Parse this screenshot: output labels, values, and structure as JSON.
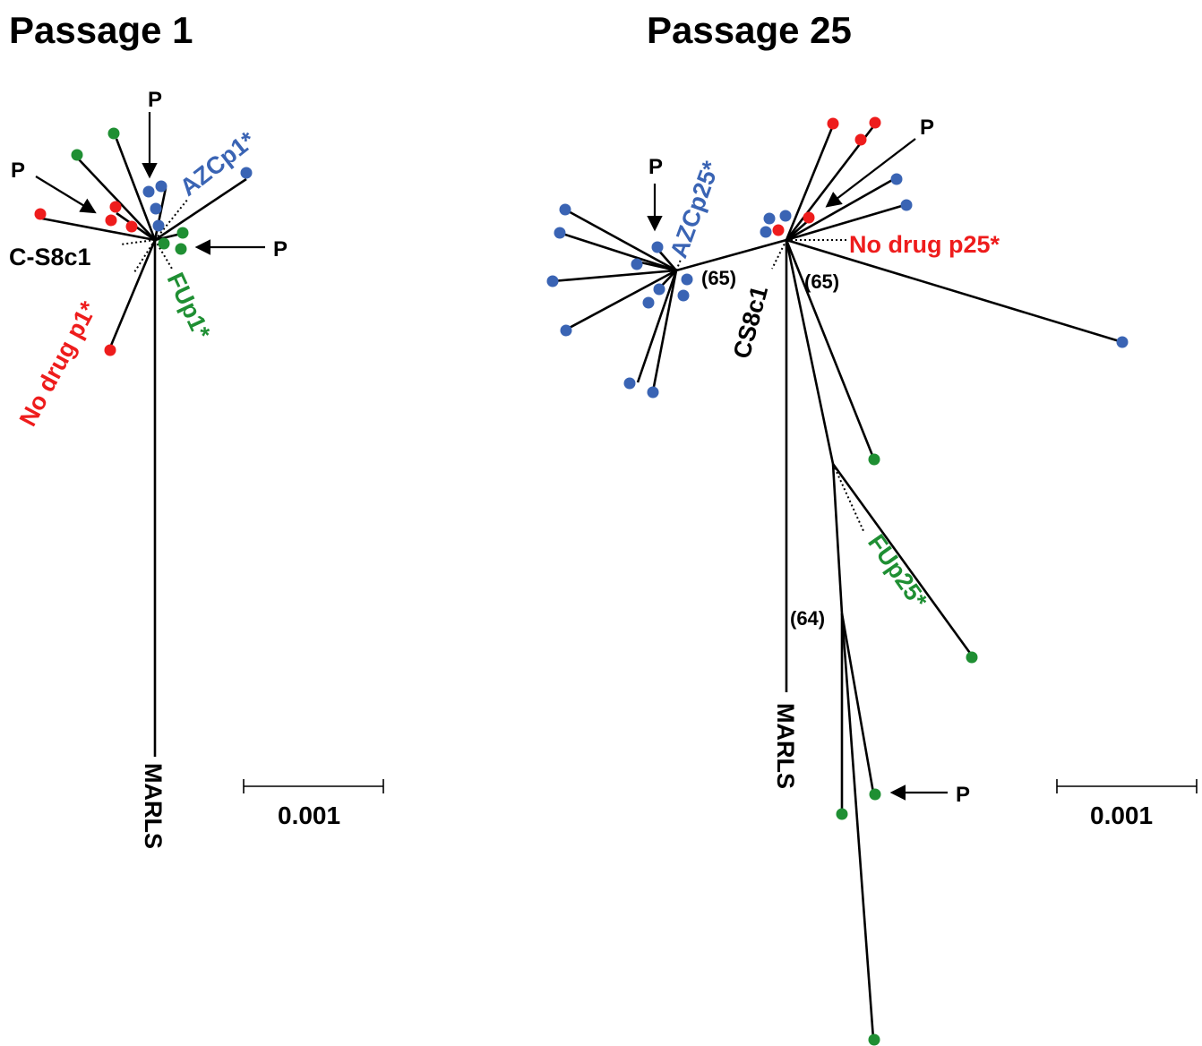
{
  "colors": {
    "red": "#ee1c1c",
    "green": "#1f8f33",
    "blue": "#3a64b4",
    "black": "#000000"
  },
  "passage1": {
    "title": "Passage 1",
    "label_azc": "AZCp1*",
    "label_nodrug": "No drug p1*",
    "label_fu": "FUp1*",
    "label_cs8": "C-S8c1",
    "label_marls": "MARLS",
    "marker_p": "P",
    "scale": "0.001"
  },
  "passage25": {
    "title": "Passage 25",
    "label_azc": "AZCp25*",
    "label_nodrug": "No drug p25*",
    "label_fu": "FUp25*",
    "label_cs8": "CS8c1",
    "label_marls": "MARLS",
    "marker_p": "P",
    "boot_left": "(65)",
    "boot_right": "(65)",
    "boot_bottom": "(64)",
    "scale": "0.001"
  }
}
